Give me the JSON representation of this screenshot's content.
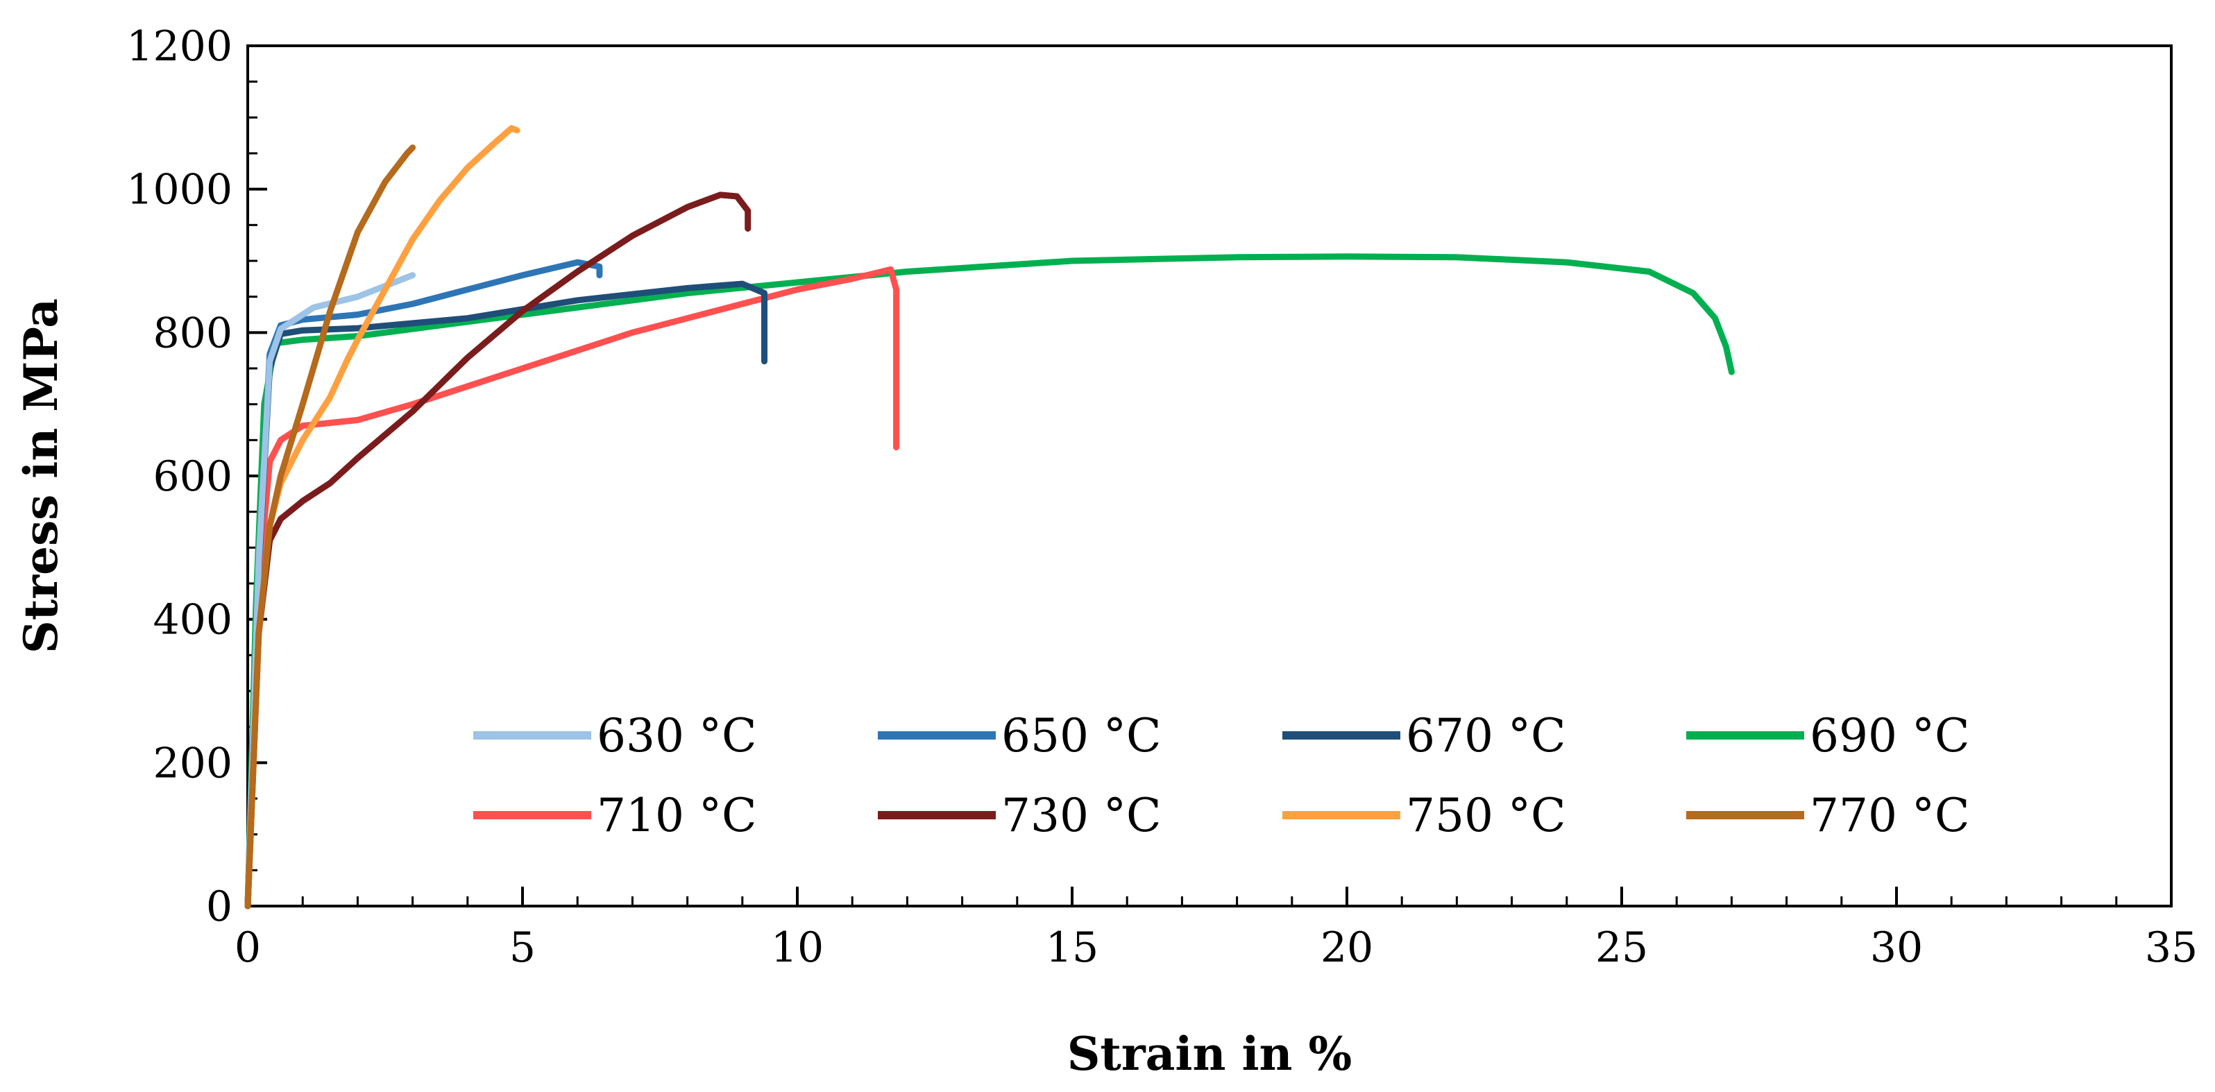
{
  "chart_data": {
    "type": "line",
    "title": "",
    "xlabel": "Strain in %",
    "ylabel": "Stress in MPa",
    "xlim": [
      0,
      35
    ],
    "ylim": [
      0,
      1200
    ],
    "x_ticks": [
      0,
      5,
      10,
      15,
      20,
      25,
      30,
      35
    ],
    "y_ticks": [
      0,
      200,
      400,
      600,
      800,
      1000,
      1200
    ],
    "x_tick_labels": [
      "0",
      "5",
      "10",
      "15",
      "20",
      "25",
      "30",
      "35"
    ],
    "y_tick_labels": [
      "0",
      "200",
      "400",
      "600",
      "800",
      "1000",
      "1200"
    ],
    "grid": false,
    "legend_position": "bottom-center, 2 rows x 4 columns",
    "series": [
      {
        "name": "630 °C",
        "color": "#9dc3e6",
        "x": [
          0,
          0.2,
          0.4,
          0.6,
          0.8,
          1.2,
          2.0,
          3.0
        ],
        "y": [
          0,
          480,
          760,
          805,
          815,
          835,
          850,
          880
        ]
      },
      {
        "name": "650 °C",
        "color": "#2e75b6",
        "x": [
          0,
          0.2,
          0.4,
          0.6,
          1.0,
          2.0,
          3.0,
          4.0,
          5.0,
          6.0,
          6.4,
          6.4
        ],
        "y": [
          0,
          480,
          770,
          810,
          818,
          825,
          840,
          860,
          880,
          898,
          892,
          880
        ]
      },
      {
        "name": "670 °C",
        "color": "#1f4e79",
        "x": [
          0,
          0.2,
          0.4,
          0.6,
          1.0,
          2.0,
          4.0,
          6.0,
          8.0,
          9.0,
          9.4,
          9.4
        ],
        "y": [
          0,
          470,
          750,
          798,
          803,
          806,
          820,
          845,
          862,
          868,
          855,
          760
        ]
      },
      {
        "name": "690 °C",
        "color": "#00b050",
        "x": [
          0,
          0.15,
          0.3,
          0.5,
          1.0,
          2.0,
          4.0,
          6.0,
          8.0,
          10.0,
          12.0,
          15.0,
          18.0,
          20.0,
          22.0,
          24.0,
          25.5,
          26.3,
          26.7,
          26.9,
          27.0
        ],
        "y": [
          0,
          420,
          700,
          785,
          790,
          795,
          815,
          835,
          855,
          870,
          885,
          900,
          905,
          906,
          905,
          898,
          885,
          855,
          820,
          780,
          745
        ]
      },
      {
        "name": "710 °C",
        "color": "#ff5050",
        "x": [
          0,
          0.2,
          0.4,
          0.6,
          1.0,
          2.0,
          3.0,
          4.0,
          5.0,
          6.0,
          7.0,
          8.0,
          9.0,
          10.0,
          11.0,
          11.7,
          11.8,
          11.8
        ],
        "y": [
          0,
          450,
          620,
          650,
          670,
          678,
          700,
          725,
          750,
          775,
          800,
          820,
          840,
          860,
          875,
          888,
          860,
          640
        ]
      },
      {
        "name": "730 °C",
        "color": "#7b1c1c",
        "x": [
          0,
          0.2,
          0.4,
          0.6,
          1.0,
          1.5,
          2.0,
          3.0,
          4.0,
          5.0,
          6.0,
          7.0,
          8.0,
          8.6,
          8.9,
          9.1,
          9.1
        ],
        "y": [
          0,
          380,
          510,
          540,
          565,
          590,
          625,
          690,
          765,
          830,
          885,
          935,
          975,
          992,
          990,
          970,
          945
        ]
      },
      {
        "name": "750 °C",
        "color": "#ffa040",
        "x": [
          0,
          0.2,
          0.4,
          0.6,
          1.0,
          1.5,
          1.8,
          2.0,
          2.5,
          3.0,
          3.5,
          4.0,
          4.5,
          4.8,
          4.9
        ],
        "y": [
          0,
          380,
          530,
          590,
          650,
          710,
          760,
          790,
          860,
          930,
          985,
          1030,
          1065,
          1085,
          1082
        ]
      },
      {
        "name": "770 °C",
        "color": "#b56a1c",
        "x": [
          0,
          0.2,
          0.4,
          0.6,
          1.0,
          1.5,
          2.0,
          2.5,
          2.9,
          3.0
        ],
        "y": [
          0,
          380,
          530,
          600,
          700,
          830,
          940,
          1010,
          1050,
          1058
        ]
      }
    ]
  }
}
